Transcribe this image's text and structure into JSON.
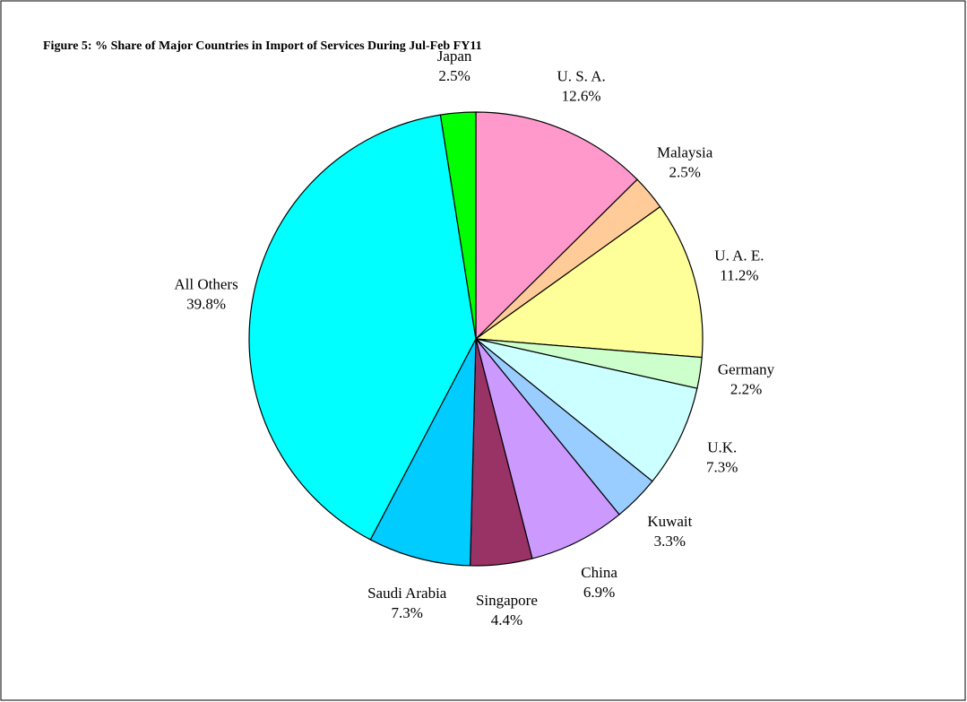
{
  "chart_data": {
    "type": "pie",
    "title": "Figure 5: % Share of Major Countries in Import of Services During  Jul-Feb FY11",
    "categories": [
      "U. S. A.",
      "Malaysia",
      "U. A. E.",
      "Germany",
      "U.K.",
      "Kuwait",
      "China",
      "Singapore",
      "Saudi Arabia",
      "All Others",
      "Japan"
    ],
    "values": [
      12.6,
      2.5,
      11.2,
      2.2,
      7.3,
      3.3,
      6.9,
      4.4,
      7.3,
      39.8,
      2.5
    ],
    "value_labels": [
      "12.6%",
      "2.5%",
      "11.2%",
      "2.2%",
      "7.3%",
      "3.3%",
      "6.9%",
      "4.4%",
      "7.3%",
      "39.8%",
      "2.5%"
    ],
    "colors": [
      "#ff99cc",
      "#ffcc99",
      "#ffff99",
      "#ccffcc",
      "#ccffff",
      "#99ccff",
      "#cc99ff",
      "#993366",
      "#00ccff",
      "#00ffff",
      "#00ff00"
    ]
  }
}
